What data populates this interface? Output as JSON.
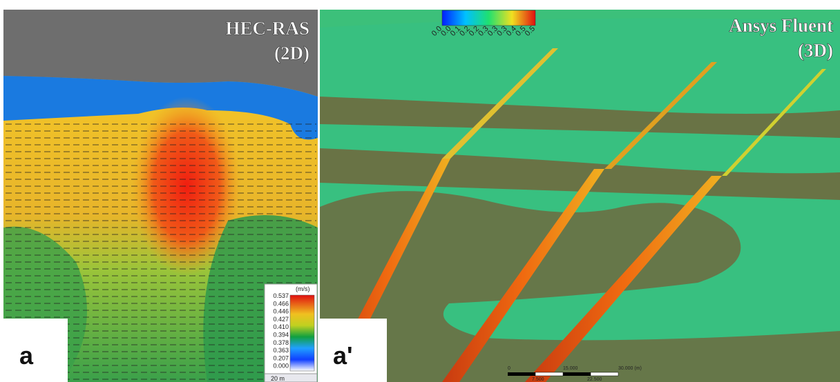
{
  "panels": [
    {
      "title_line1": "HEC-RAS",
      "title_line2": "(2D)",
      "label": "a",
      "legend": {
        "unit": "(m/s)",
        "ticks": [
          "0.537",
          "0.466",
          "0.446",
          "0.427",
          "0.410",
          "0.394",
          "0.378",
          "0.363",
          "0.207",
          "0.000"
        ]
      },
      "scale": "20 m"
    },
    {
      "title_line1": "Ansys Fluent",
      "title_line2": "(3D)",
      "label": "a'",
      "legend": {
        "ticks": [
          "0.0",
          "0.0",
          "0.1",
          "0.2",
          "0.2",
          "0.3",
          "0.3",
          "0.3",
          "0.4",
          "0.5",
          "0.5"
        ]
      },
      "scale": {
        "top": [
          "0",
          "15.000",
          "30.000 (m)"
        ],
        "bottom": [
          "7.500",
          "22.500"
        ]
      }
    }
  ]
}
